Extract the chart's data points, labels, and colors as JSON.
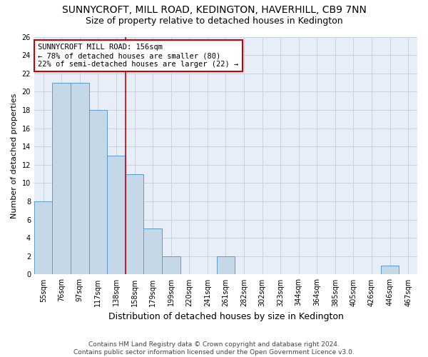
{
  "title": "SUNNYCROFT, MILL ROAD, KEDINGTON, HAVERHILL, CB9 7NN",
  "subtitle": "Size of property relative to detached houses in Kedington",
  "xlabel": "Distribution of detached houses by size in Kedington",
  "ylabel": "Number of detached properties",
  "categories": [
    "55sqm",
    "76sqm",
    "97sqm",
    "117sqm",
    "138sqm",
    "158sqm",
    "179sqm",
    "199sqm",
    "220sqm",
    "241sqm",
    "261sqm",
    "282sqm",
    "302sqm",
    "323sqm",
    "344sqm",
    "364sqm",
    "385sqm",
    "405sqm",
    "426sqm",
    "446sqm",
    "467sqm"
  ],
  "values": [
    8,
    21,
    21,
    18,
    13,
    11,
    5,
    2,
    0,
    0,
    2,
    0,
    0,
    0,
    0,
    0,
    0,
    0,
    0,
    1,
    0
  ],
  "bar_color": "#c5d8e8",
  "bar_edge_color": "#5b9bd5",
  "property_line_index": 5,
  "property_label": "SUNNYCROFT MILL ROAD: 156sqm",
  "annotation_line1": "← 78% of detached houses are smaller (80)",
  "annotation_line2": "22% of semi-detached houses are larger (22) →",
  "annotation_box_color": "#ffffff",
  "annotation_box_edge_color": "#cc0000",
  "property_line_color": "#cc0000",
  "ylim": [
    0,
    26
  ],
  "yticks": [
    0,
    2,
    4,
    6,
    8,
    10,
    12,
    14,
    16,
    18,
    20,
    22,
    24,
    26
  ],
  "grid_color": "#c8d4e4",
  "background_color": "#e8eef8",
  "figure_color": "#ffffff",
  "footer": "Contains HM Land Registry data © Crown copyright and database right 2024.\nContains public sector information licensed under the Open Government Licence v3.0.",
  "title_fontsize": 10,
  "subtitle_fontsize": 9,
  "xlabel_fontsize": 9,
  "ylabel_fontsize": 8,
  "tick_fontsize": 7,
  "annotation_fontsize": 7.5,
  "footer_fontsize": 6.5
}
